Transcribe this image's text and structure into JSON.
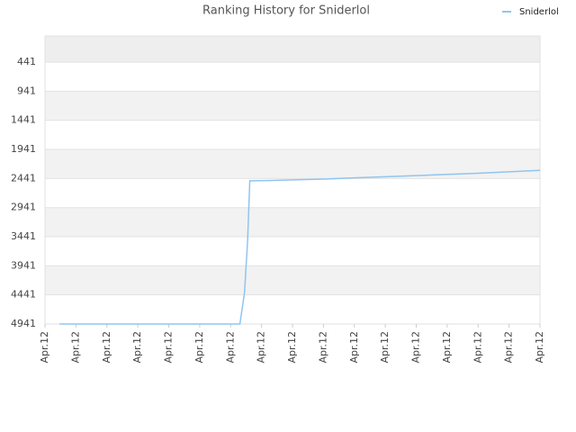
{
  "chart_data": {
    "type": "line",
    "title": "Ranking History for Sniderlol",
    "x": [
      0.47,
      6.3,
      6.45,
      6.55,
      6.62,
      7.2,
      8,
      9,
      10,
      11,
      12,
      13,
      14,
      15,
      16
    ],
    "series": [
      {
        "name": "Sniderlol",
        "color": "#90c4f0",
        "values": [
          4941,
          4941,
          4400,
          3500,
          2480,
          2475,
          2465,
          2450,
          2430,
          2410,
          2390,
          2370,
          2350,
          2325,
          2300
        ]
      }
    ],
    "xlim": [
      0,
      16
    ],
    "xticks": [
      {
        "value": 0,
        "label": "Apr.12"
      },
      {
        "value": 1,
        "label": "Apr.12"
      },
      {
        "value": 2,
        "label": "Apr.12"
      },
      {
        "value": 3,
        "label": "Apr.12"
      },
      {
        "value": 4,
        "label": "Apr.12"
      },
      {
        "value": 5,
        "label": "Apr.12"
      },
      {
        "value": 6,
        "label": "Apr.12"
      },
      {
        "value": 7,
        "label": "Apr.12"
      },
      {
        "value": 8,
        "label": "Apr.12"
      },
      {
        "value": 9,
        "label": "Apr.12"
      },
      {
        "value": 10,
        "label": "Apr.12"
      },
      {
        "value": 11,
        "label": "Apr.12"
      },
      {
        "value": 12,
        "label": "Apr.12"
      },
      {
        "value": 13,
        "label": "Apr.12"
      },
      {
        "value": 14,
        "label": "Apr.12"
      },
      {
        "value": 15,
        "label": "Apr.12"
      },
      {
        "value": 16,
        "label": "Apr.12"
      }
    ],
    "ylim": [
      4941,
      -9
    ],
    "yticks": [
      441,
      941,
      1441,
      1941,
      2441,
      2941,
      3441,
      3941,
      4441,
      4941
    ],
    "grid": true,
    "legend": "top-right"
  }
}
